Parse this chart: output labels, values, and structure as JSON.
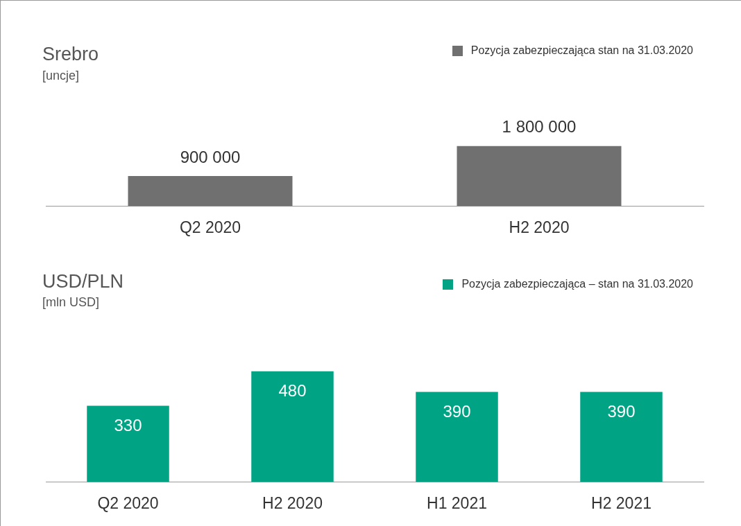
{
  "chart_data": [
    {
      "type": "bar",
      "title": "Srebro",
      "subtitle": "[uncje]",
      "categories": [
        "Q2 2020",
        "H2 2020"
      ],
      "series": [
        {
          "name": "Pozycja zabezpieczająca stan na 31.03.2020",
          "color": "#707070",
          "values": [
            900000,
            1800000
          ],
          "value_labels": [
            "900 000",
            "1 800 000"
          ]
        }
      ],
      "legend": "top right",
      "grid": false,
      "tick_labels": "x"
    },
    {
      "type": "bar",
      "title": "USD/PLN",
      "subtitle": "[mln USD]",
      "categories": [
        "Q2 2020",
        "H2 2020",
        "H1 2021",
        "H2 2021"
      ],
      "series": [
        {
          "name": "Pozycja zabezpieczająca – stan na 31.03.2020",
          "color": "#00a383",
          "values": [
            330,
            480,
            390,
            390
          ],
          "value_labels": [
            "330",
            "480",
            "390",
            "390"
          ]
        }
      ],
      "legend": "top right",
      "grid": false,
      "tick_labels": "x"
    }
  ]
}
